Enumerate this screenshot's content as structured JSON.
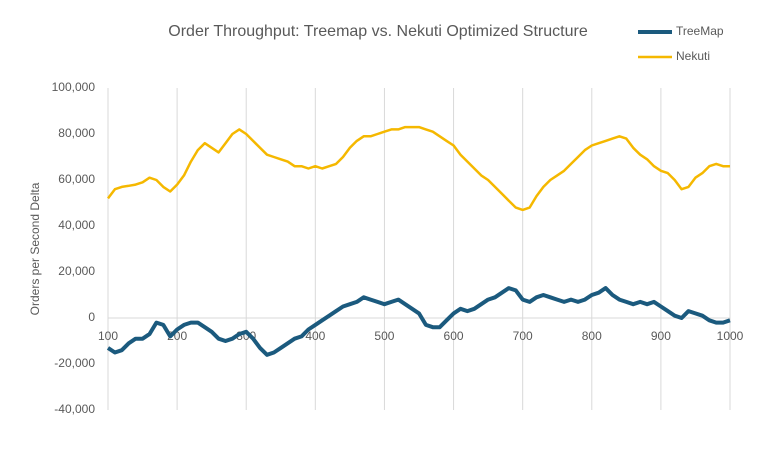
{
  "chart_data": {
    "type": "line",
    "title": "Order Throughput:  Treemap vs. Nekuti Optimized Structure",
    "y_label": "Orders per Second Delta",
    "x": [
      100,
      110,
      120,
      130,
      140,
      150,
      160,
      170,
      180,
      190,
      200,
      210,
      220,
      230,
      240,
      250,
      260,
      270,
      280,
      290,
      300,
      310,
      320,
      330,
      340,
      350,
      360,
      370,
      380,
      390,
      400,
      410,
      420,
      430,
      440,
      450,
      460,
      470,
      480,
      490,
      500,
      510,
      520,
      530,
      540,
      550,
      560,
      570,
      580,
      590,
      600,
      610,
      620,
      630,
      640,
      650,
      660,
      670,
      680,
      690,
      700,
      710,
      720,
      730,
      740,
      750,
      760,
      770,
      780,
      790,
      800,
      810,
      820,
      830,
      840,
      850,
      860,
      870,
      880,
      890,
      900,
      910,
      920,
      930,
      940,
      950,
      960,
      970,
      980,
      990,
      1000
    ],
    "series": [
      {
        "name": "TreeMap",
        "color": "#1b5a7e",
        "values": [
          -13000,
          -15000,
          -14000,
          -11000,
          -9000,
          -9000,
          -7000,
          -2000,
          -3000,
          -8000,
          -5000,
          -3000,
          -2000,
          -2000,
          -4000,
          -6000,
          -9000,
          -10000,
          -9000,
          -7000,
          -6000,
          -9000,
          -13000,
          -16000,
          -15000,
          -13000,
          -11000,
          -9000,
          -8000,
          -5000,
          -3000,
          -1000,
          1000,
          3000,
          5000,
          6000,
          7000,
          9000,
          8000,
          7000,
          6000,
          7000,
          8000,
          6000,
          4000,
          2000,
          -3000,
          -4000,
          -4000,
          -1000,
          2000,
          4000,
          3000,
          4000,
          6000,
          8000,
          9000,
          11000,
          13000,
          12000,
          8000,
          7000,
          9000,
          10000,
          9000,
          8000,
          7000,
          8000,
          7000,
          8000,
          10000,
          11000,
          13000,
          10000,
          8000,
          7000,
          6000,
          7000,
          6000,
          7000,
          5000,
          3000,
          1000,
          0,
          3000,
          2000,
          1000,
          -1000,
          -2000,
          -2000,
          -1000
        ]
      },
      {
        "name": "Nekuti",
        "color": "#f5b800",
        "values": [
          52000,
          56000,
          57000,
          57500,
          58000,
          59000,
          61000,
          60000,
          57000,
          55000,
          58000,
          62000,
          68000,
          73000,
          76000,
          74000,
          72000,
          76000,
          80000,
          82000,
          80000,
          77000,
          74000,
          71000,
          70000,
          69000,
          68000,
          66000,
          66000,
          65000,
          66000,
          65000,
          66000,
          67000,
          70000,
          74000,
          77000,
          79000,
          79000,
          80000,
          81000,
          82000,
          82000,
          83000,
          83000,
          83000,
          82000,
          81000,
          79000,
          77000,
          75000,
          71000,
          68000,
          65000,
          62000,
          60000,
          57000,
          54000,
          51000,
          48000,
          47000,
          48000,
          53000,
          57000,
          60000,
          62000,
          64000,
          67000,
          70000,
          73000,
          75000,
          76000,
          77000,
          78000,
          79000,
          78000,
          74000,
          71000,
          69000,
          66000,
          64000,
          63000,
          60000,
          56000,
          57000,
          61000,
          63000,
          66000,
          67000,
          66000,
          66000
        ]
      }
    ],
    "xlim": [
      100,
      1000
    ],
    "xticks": [
      100,
      200,
      300,
      400,
      500,
      600,
      700,
      800,
      900,
      1000
    ],
    "ylim": [
      -40000,
      100000
    ],
    "yticks": [
      {
        "value": -40000,
        "label": "-40,000"
      },
      {
        "value": -20000,
        "label": "-20,000"
      },
      0,
      {
        "value": 20000,
        "label": "20,000"
      },
      {
        "value": 40000,
        "label": "40,000"
      },
      {
        "value": 60000,
        "label": "60,000"
      },
      {
        "value": 80000,
        "label": "80,000"
      },
      {
        "value": 100000,
        "label": "100,000"
      }
    ],
    "x_grid": true
  }
}
